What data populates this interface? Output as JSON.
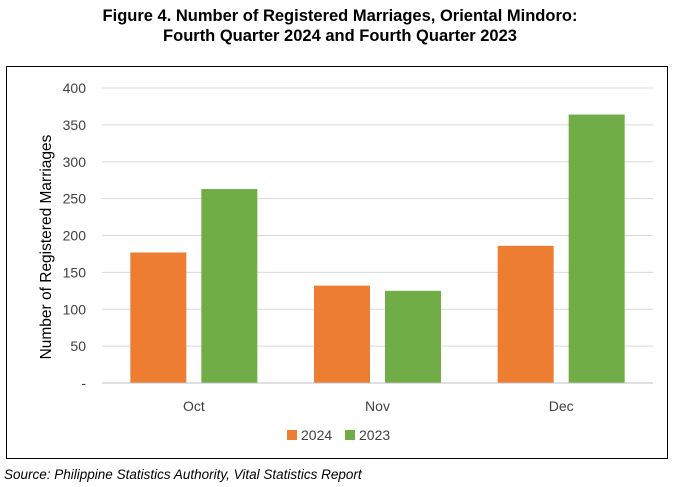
{
  "figure": {
    "title_line1": "Figure 4. Number of Registered Marriages, Oriental Mindoro:",
    "title_line2": "Fourth Quarter 2024 and Fourth Quarter 2023",
    "source": "Source: Philippine Statistics Authority, Vital Statistics Report"
  },
  "chart_data": {
    "type": "bar",
    "categories": [
      "Oct",
      "Nov",
      "Dec"
    ],
    "series": [
      {
        "name": "2024",
        "color": "#ED7D31",
        "values": [
          177,
          132,
          186
        ]
      },
      {
        "name": "2023",
        "color": "#70AD47",
        "values": [
          263,
          125,
          364
        ]
      }
    ],
    "ylabel": "Number of Registered Marriages",
    "ylim": [
      0,
      400
    ],
    "y_ticks": [
      0,
      50,
      100,
      150,
      200,
      250,
      300,
      350,
      400
    ],
    "y_tick_labels": [
      "-",
      "50",
      "100",
      "150",
      "200",
      "250",
      "300",
      "350",
      "400"
    ],
    "grid": true,
    "gridline_color": "#D9D9D9",
    "legend_position": "bottom"
  }
}
